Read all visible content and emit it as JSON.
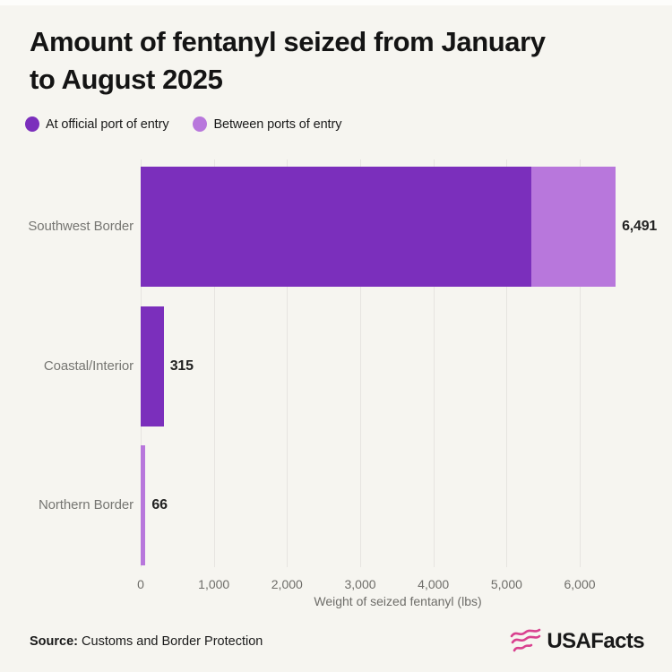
{
  "header": {
    "title_line1": "Amount of fentanyl seized from January",
    "title_line2": "to August 2025"
  },
  "legend": {
    "items": [
      {
        "label": "At official port of entry",
        "color": "#7B2FBC"
      },
      {
        "label": "Between ports of entry",
        "color": "#B877DC"
      }
    ]
  },
  "chart_data": {
    "type": "bar",
    "orientation": "horizontal",
    "stacked": true,
    "title": "Amount of fentanyl seized from January to August 2025",
    "categories": [
      "Southwest Border",
      "Coastal/Interior",
      "Northern Border"
    ],
    "series": [
      {
        "name": "At official port of entry",
        "color": "#7B2FBC",
        "values": [
          5340,
          315,
          0
        ]
      },
      {
        "name": "Between ports of entry",
        "color": "#B877DC",
        "values": [
          1151,
          0,
          66
        ]
      }
    ],
    "totals": [
      6491,
      315,
      66
    ],
    "total_labels": [
      "6,491",
      "315",
      "66"
    ],
    "xlabel": "Weight of seized fentanyl (lbs)",
    "xlim": [
      0,
      6600
    ],
    "xticks": [
      0,
      1000,
      2000,
      3000,
      4000,
      5000,
      6000
    ],
    "xtick_labels": [
      "0",
      "1,000",
      "2,000",
      "3,000",
      "4,000",
      "5,000",
      "6,000"
    ],
    "grid": "vertical",
    "legend_position": "top-left"
  },
  "footer": {
    "source_label": "Source:",
    "source_text": "Customs and Border Protection",
    "brand": "USAFacts",
    "brand_color": "#D9418F"
  },
  "colors": {
    "background": "#F6F5F0",
    "gridline": "#E6E4E0",
    "category_label": "#767672",
    "value_label": "#222222",
    "tick_label": "#6E6D69",
    "title": "#141414"
  }
}
